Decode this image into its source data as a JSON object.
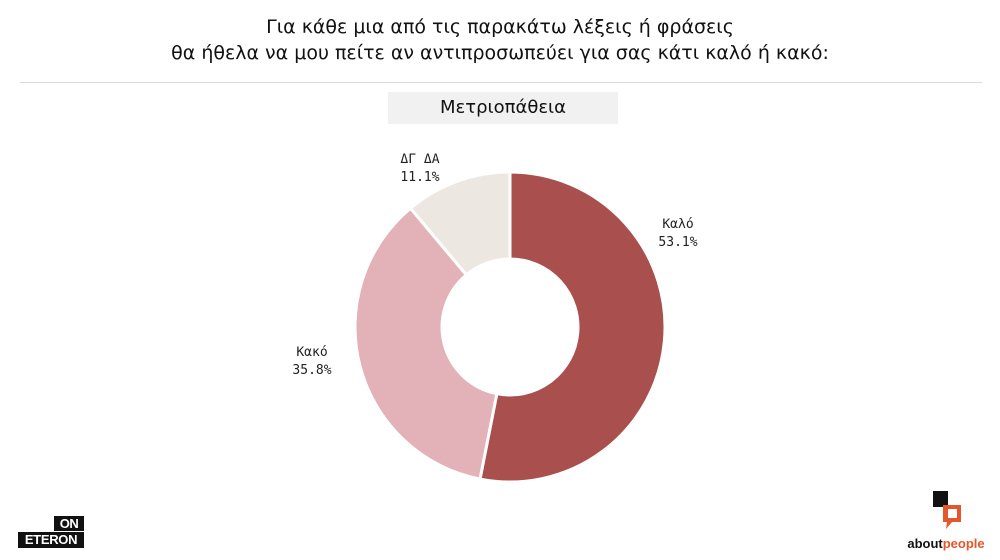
{
  "header": {
    "line1": "Για κάθε μια από τις παρακάτω λέξεις ή φράσεις",
    "line2": "θα ήθελα να μου πείτε αν αντιπροσωπεύει για σας κάτι καλό ή κακό:"
  },
  "chart_data": {
    "type": "pie",
    "donut": true,
    "title": "Μετριοπάθεια",
    "slices": [
      {
        "label": "Καλό",
        "value": 53.1,
        "display": "53.1%",
        "color": "#a94f4d"
      },
      {
        "label": "Κακό",
        "value": 35.8,
        "display": "35.8%",
        "color": "#e3b1b8"
      },
      {
        "label": "ΔΓ ΔΑ",
        "value": 11.1,
        "display": "11.1%",
        "color": "#ece7e1"
      }
    ]
  },
  "logos": {
    "left_top": "ON",
    "left_bottom": "ETERON",
    "right_part1": "about",
    "right_part2": "people",
    "right_mark_color_dark": "#111111",
    "right_mark_color_accent": "#e4562b"
  }
}
